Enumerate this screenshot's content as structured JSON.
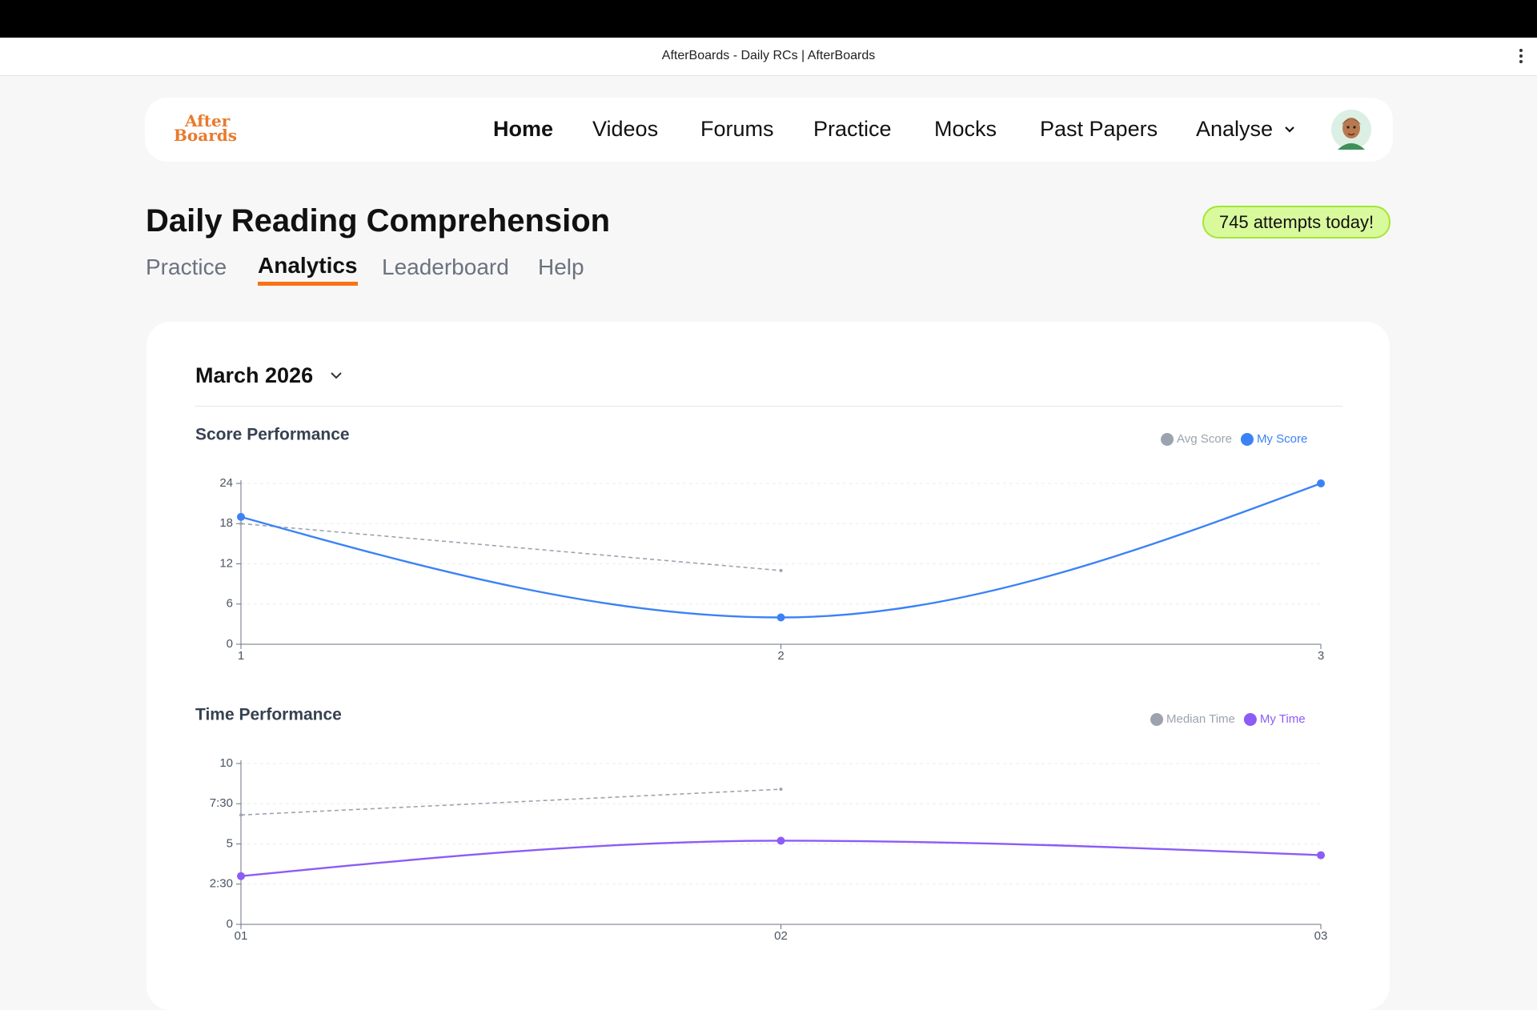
{
  "browser": {
    "tab_title": "AfterBoards - Daily RCs | AfterBoards"
  },
  "logo": {
    "line1": "After",
    "line2": "Boards"
  },
  "nav": [
    "Home",
    "Videos",
    "Forums",
    "Practice",
    "Mocks",
    "Past Papers",
    "Analyse"
  ],
  "page": {
    "title": "Daily Reading Comprehension",
    "badge": "745 attempts today!",
    "tabs": [
      "Practice",
      "Analytics",
      "Leaderboard",
      "Help"
    ],
    "month": "March 2026"
  },
  "chart_data": [
    {
      "type": "line",
      "title": "Score Performance",
      "categories": [
        "1",
        "2",
        "3"
      ],
      "series": [
        {
          "name": "Avg Score",
          "color": "#9ca3af",
          "values": [
            18,
            11,
            null
          ]
        },
        {
          "name": "My Score",
          "color": "#3b82f6",
          "values": [
            19,
            4,
            24
          ]
        }
      ],
      "ylim": [
        0,
        24
      ],
      "yticks": [
        0,
        6,
        12,
        18,
        24
      ],
      "grid": true
    },
    {
      "type": "line",
      "title": "Time Performance",
      "categories": [
        "01",
        "02",
        "03"
      ],
      "series": [
        {
          "name": "Median Time",
          "color": "#9ca3af",
          "values": [
            6.8,
            8.4,
            null
          ]
        },
        {
          "name": "My Time",
          "color": "#8b5cf6",
          "values": [
            3,
            5.2,
            4.3
          ]
        }
      ],
      "ylim": [
        0,
        10
      ],
      "yticks": [
        0,
        {
          "value": 2.5,
          "label": "2:30"
        },
        5,
        {
          "value": 7.5,
          "label": "7:30"
        },
        10
      ],
      "grid": true
    }
  ]
}
